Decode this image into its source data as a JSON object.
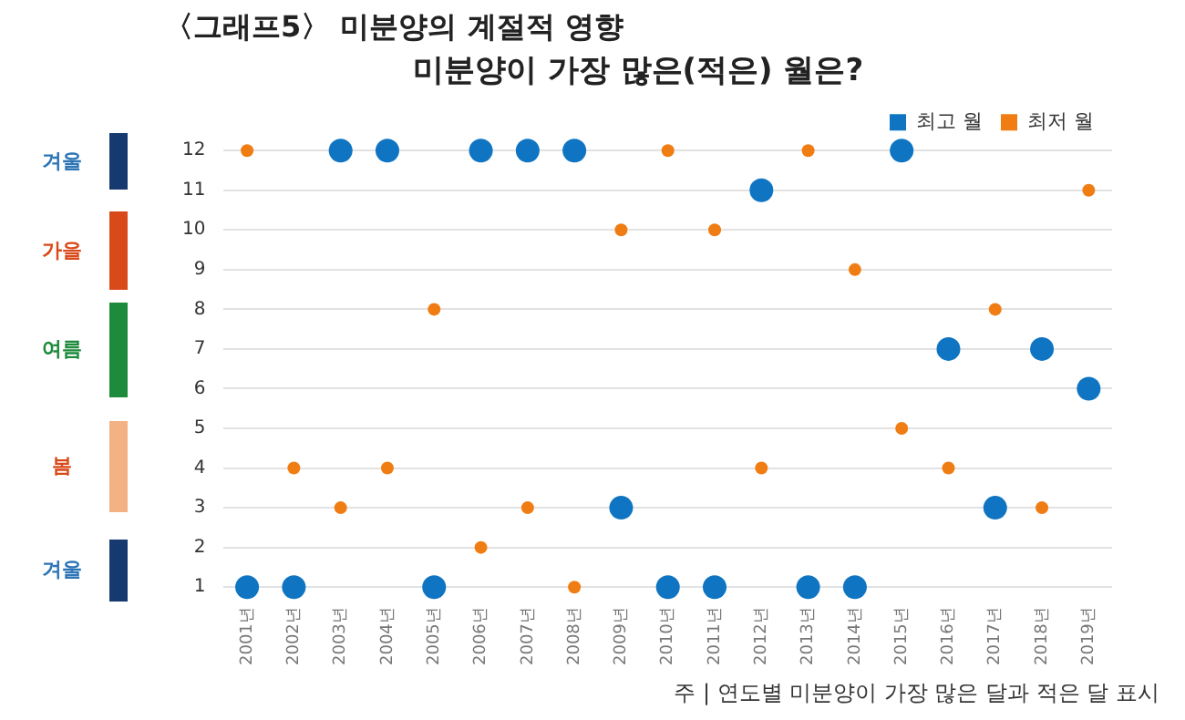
{
  "chart_data": {
    "type": "scatter",
    "title": "〈그래프5〉 미분양의 계절적 영향",
    "subtitle": "미분양이 가장 많은(적은) 월은?",
    "categories": [
      "2001년",
      "2002년",
      "2003년",
      "2004년",
      "2005년",
      "2006년",
      "2007년",
      "2008년",
      "2009년",
      "2010년",
      "2011년",
      "2012년",
      "2013년",
      "2014년",
      "2015년",
      "2016년",
      "2017년",
      "2018년",
      "2019년"
    ],
    "series": [
      {
        "name": "최고 월",
        "color": "#0f75c2",
        "values": [
          1,
          1,
          12,
          12,
          1,
          12,
          12,
          12,
          3,
          1,
          1,
          11,
          1,
          1,
          12,
          7,
          3,
          7,
          6
        ]
      },
      {
        "name": "최저 월",
        "color": "#f07d14",
        "values": [
          12,
          4,
          3,
          4,
          8,
          2,
          3,
          1,
          10,
          12,
          10,
          4,
          12,
          9,
          5,
          4,
          8,
          3,
          11
        ]
      }
    ],
    "ylim": [
      1,
      12
    ],
    "yticks": [
      1,
      2,
      3,
      4,
      5,
      6,
      7,
      8,
      9,
      10,
      11,
      12
    ],
    "grid": "y",
    "legend": "top right",
    "marker": "circle",
    "annotations": [
      "주 | 연도별 미분양이 가장 많은 달과 적은 달 표시",
      "겨울",
      "가을",
      "여름",
      "봄",
      "겨울"
    ]
  }
}
